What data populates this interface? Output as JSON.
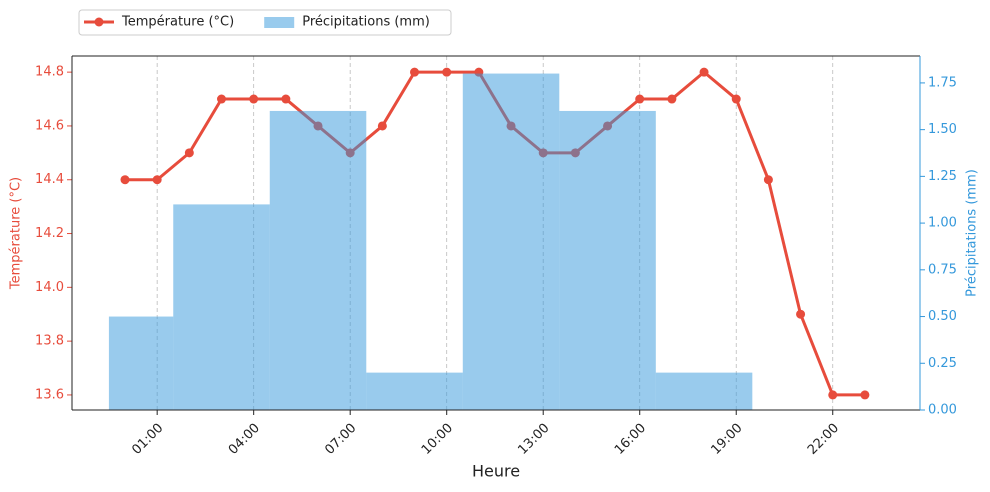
{
  "chart_data": {
    "type": "line-bar",
    "x_label": "Heure",
    "y_label": "Température (°C)",
    "y2_label": "Précipitations (mm)",
    "categories": [
      null,
      "01:00",
      null,
      null,
      "04:00",
      null,
      null,
      "07:00",
      null,
      null,
      "10:00",
      null,
      null,
      "13:00",
      null,
      null,
      "16:00",
      null,
      null,
      "19:00",
      null,
      null,
      "22:00",
      null
    ],
    "series": [
      {
        "name": "Température (°C)",
        "type": "line",
        "color": "#e74c3c",
        "values": [
          14.4,
          14.4,
          14.5,
          14.7,
          14.7,
          14.7,
          14.6,
          14.5,
          14.6,
          14.8,
          14.8,
          14.8,
          14.6,
          14.5,
          14.5,
          14.6,
          14.7,
          14.7,
          14.8,
          14.7,
          14.4,
          13.9,
          13.6,
          13.6
        ]
      },
      {
        "name": "Précipitations (mm)",
        "type": "bar",
        "axis": "y2",
        "color": "#3498db",
        "values": [
          0.5,
          null,
          null,
          1.1,
          null,
          null,
          1.6,
          null,
          null,
          0.2,
          null,
          null,
          1.8,
          null,
          null,
          1.6,
          null,
          null,
          0.2,
          null,
          null,
          null,
          null,
          null
        ]
      }
    ],
    "ylim": [
      13.544,
      14.86
    ],
    "yticks": [
      13.6,
      13.8,
      {
        "value": 14.0,
        "label": "14.0"
      },
      14.2,
      14.4,
      14.6,
      14.8
    ],
    "y2lim": [
      0,
      1.894
    ],
    "y2ticks": [
      {
        "value": 0,
        "label": "0.00"
      },
      {
        "value": 0.25,
        "label": "0.25"
      },
      {
        "value": 0.5,
        "label": "0.50"
      },
      {
        "value": 0.75,
        "label": "0.75"
      },
      {
        "value": 1.0,
        "label": "1.00"
      },
      {
        "value": 1.25,
        "label": "1.25"
      },
      {
        "value": 1.5,
        "label": "1.50"
      },
      {
        "value": 1.75,
        "label": "1.75"
      }
    ],
    "grid": "x",
    "legend": "upper left outside"
  }
}
